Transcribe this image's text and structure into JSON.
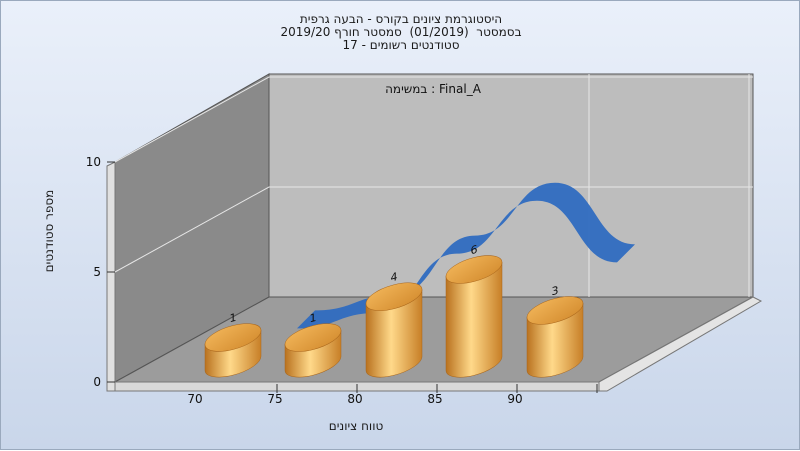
{
  "title_lines": [
    "היסטוגרמת ציונים בקורס - הבעה גרפית",
    "בסמסטר  (01/2019)  סמסטר חורף 2019/20",
    "סטודנטים רשומים - 17"
  ],
  "chart_data": {
    "type": "bar",
    "annotation": "במשימה : Final_A",
    "xlabel": "טווח ציונים",
    "ylabel": "מספר סטודנטים",
    "ylim": [
      0,
      10
    ],
    "y_ticks": [
      "0",
      "5",
      "10"
    ],
    "x_ticks": [
      "70",
      "75",
      "80",
      "85",
      "90"
    ],
    "categories": [
      "70",
      "75",
      "80",
      "85",
      "90"
    ],
    "values": [
      1,
      1,
      4,
      6,
      3
    ],
    "data_labels": [
      "1",
      "1",
      "4",
      "6",
      "3"
    ],
    "grid": true,
    "three_d": true,
    "bar_color": "#e8a84a",
    "curve_color": "#2f6bc0",
    "curve": {
      "x": [
        75,
        80,
        85,
        90,
        95
      ],
      "y": [
        2.8,
        3.5,
        6.2,
        8.6,
        5.8
      ]
    }
  }
}
